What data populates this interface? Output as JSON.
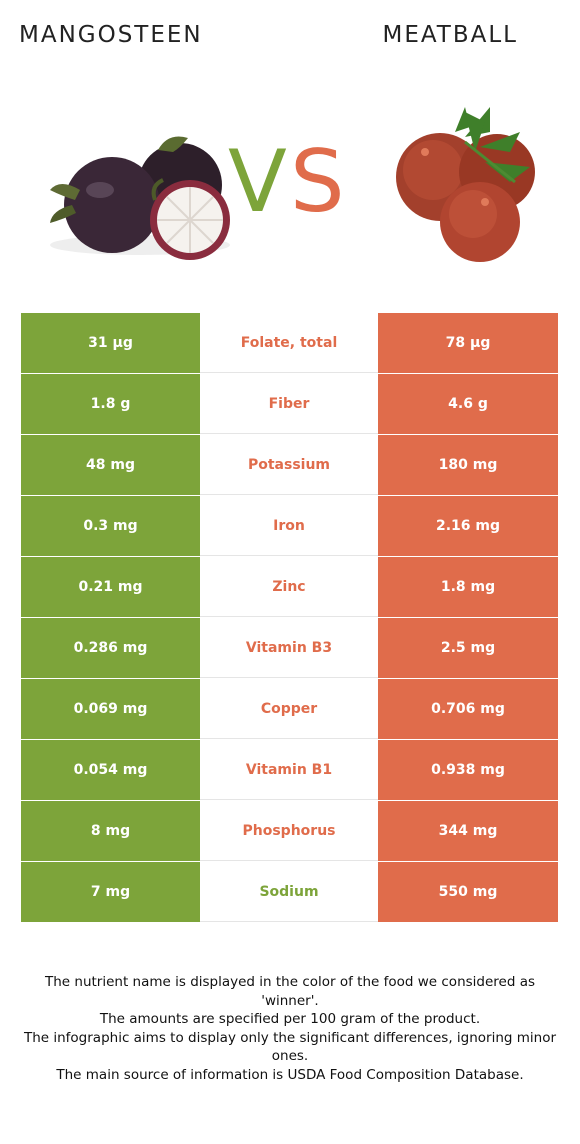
{
  "header": {
    "left_title": "MANGOSTEEN",
    "right_title": "MEATBALL"
  },
  "vs": {
    "v": "V",
    "s": "S"
  },
  "colors": {
    "left": "#7da43a",
    "right": "#e06c4b",
    "left_winner_text": "#7da43a",
    "right_winner_text": "#e06c4b"
  },
  "icons": {
    "left": "mangosteen-image",
    "right": "meatball-image"
  },
  "rows": [
    {
      "left": "31 µg",
      "nutrient": "Folate, total",
      "right": "78 µg",
      "winner": "right"
    },
    {
      "left": "1.8 g",
      "nutrient": "Fiber",
      "right": "4.6 g",
      "winner": "right"
    },
    {
      "left": "48 mg",
      "nutrient": "Potassium",
      "right": "180 mg",
      "winner": "right"
    },
    {
      "left": "0.3 mg",
      "nutrient": "Iron",
      "right": "2.16 mg",
      "winner": "right"
    },
    {
      "left": "0.21 mg",
      "nutrient": "Zinc",
      "right": "1.8 mg",
      "winner": "right"
    },
    {
      "left": "0.286 mg",
      "nutrient": "Vitamin B3",
      "right": "2.5 mg",
      "winner": "right"
    },
    {
      "left": "0.069 mg",
      "nutrient": "Copper",
      "right": "0.706 mg",
      "winner": "right"
    },
    {
      "left": "0.054 mg",
      "nutrient": "Vitamin B1",
      "right": "0.938 mg",
      "winner": "right"
    },
    {
      "left": "8 mg",
      "nutrient": "Phosphorus",
      "right": "344 mg",
      "winner": "right"
    },
    {
      "left": "7 mg",
      "nutrient": "Sodium",
      "right": "550 mg",
      "winner": "left"
    }
  ],
  "footnote": [
    "The nutrient name is displayed in the color of the food we considered as 'winner'.",
    "The amounts are specified per 100 gram of the product.",
    "The infographic aims to display only the significant differences, ignoring minor ones.",
    "The main source of information is USDA Food Composition Database."
  ]
}
